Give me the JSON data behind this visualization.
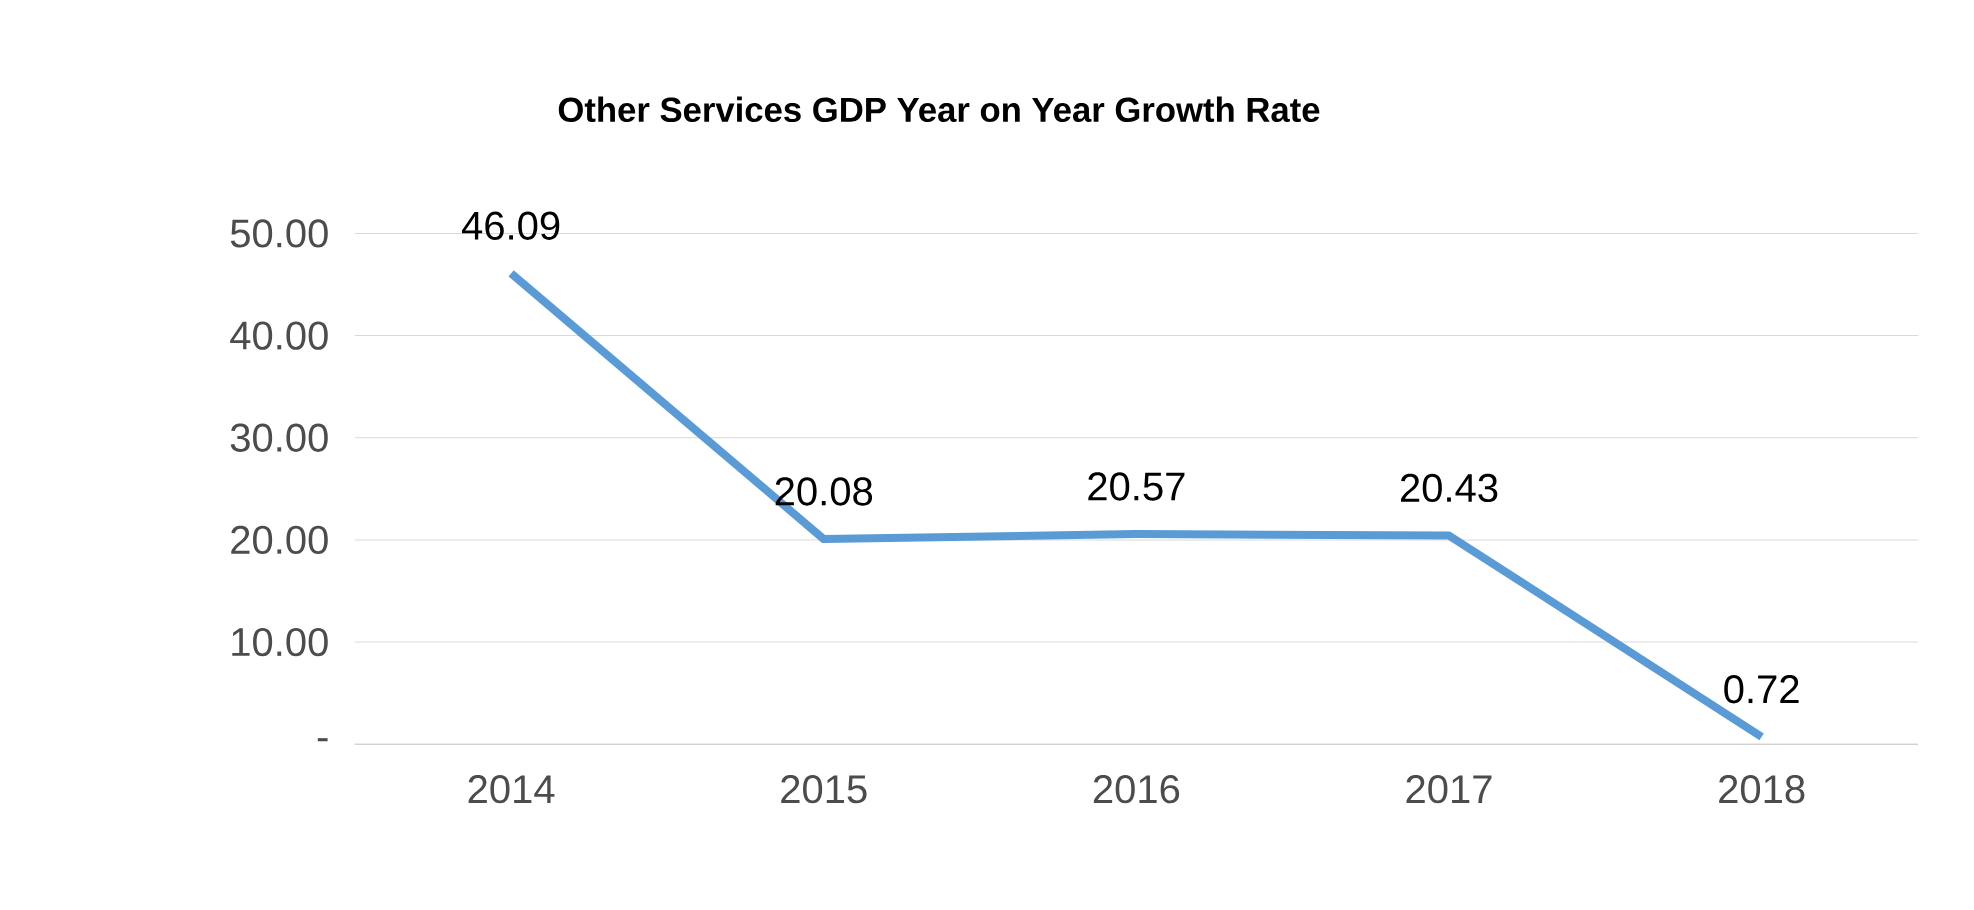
{
  "chart_data": {
    "type": "line",
    "title": "Other Services GDP Year on Year Growth Rate",
    "categories": [
      "2014",
      "2015",
      "2016",
      "2017",
      "2018"
    ],
    "values": [
      46.09,
      20.08,
      20.57,
      20.43,
      0.72
    ],
    "color": "#5b9bd5",
    "ylim": [
      0,
      50
    ],
    "yticks": [
      {
        "value": 0,
        "label": "-"
      },
      {
        "value": 10,
        "label": "10.00"
      },
      {
        "value": 20,
        "label": "20.00"
      },
      {
        "value": 30,
        "label": "30.00"
      },
      {
        "value": 40,
        "label": "40.00"
      },
      {
        "value": 50,
        "label": "50.00"
      }
    ],
    "grid": "y",
    "data_labels": true,
    "marker": "none",
    "line_style": "solid"
  }
}
